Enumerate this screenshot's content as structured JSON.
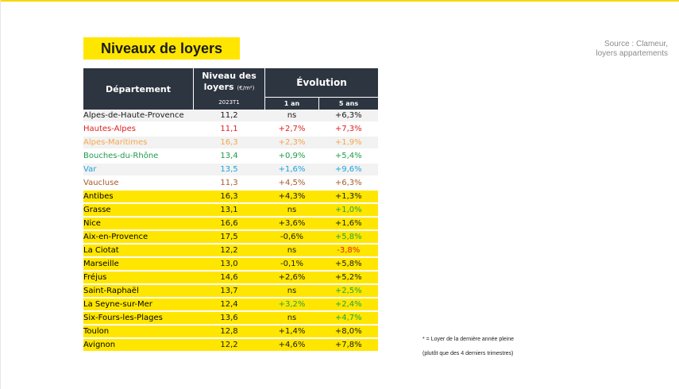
{
  "title": "Niveaux de loyers",
  "source": [
    "Source : Clameur,",
    "loyers appartements"
  ],
  "table": {
    "headers": {
      "departement": "Département",
      "niveau": "Niveau des loyers",
      "niveau_unit": "(€/m²)",
      "niveau_period": "2023T1",
      "evolution": "Évolution",
      "one_year": "1 an",
      "five_years": "5 ans"
    },
    "departements": [
      {
        "name": "Alpes-de-Haute-Provence",
        "color": "#1a1a1a",
        "niveau": "11,2",
        "an1": "ns",
        "ans5": "+6,3%"
      },
      {
        "name": "Hautes-Alpes",
        "color": "#e02020",
        "niveau": "11,1",
        "an1": "+2,7%",
        "ans5": "+7,3%"
      },
      {
        "name": "Alpes-Maritimes",
        "color": "#f5a64a",
        "niveau": "16,3",
        "an1": "+2,3%",
        "ans5": "+1,9%"
      },
      {
        "name": "Bouches-du-Rhône",
        "color": "#1e9c4a",
        "niveau": "13,4",
        "an1": "+0,9%",
        "ans5": "+5,4%"
      },
      {
        "name": "Var",
        "color": "#1ea3dc",
        "niveau": "13,5",
        "an1": "+1,6%",
        "ans5": "+9,6%"
      },
      {
        "name": "Vaucluse",
        "color": "#a85a2a",
        "niveau": "11,3",
        "an1": "+4,5%",
        "ans5": "+6,3%"
      }
    ],
    "villes": [
      {
        "name": "Antibes",
        "niveau": "16,3",
        "an1": "+4,3%",
        "ans5": "+1,3%",
        "an1_color": "",
        "ans5_color": ""
      },
      {
        "name": "Grasse",
        "niveau": "13,1",
        "an1": "ns",
        "ans5": "+1,0%",
        "an1_color": "",
        "ans5_color": "green"
      },
      {
        "name": "Nice",
        "niveau": "16,6",
        "an1": "+3,6%",
        "ans5": "+1,6%",
        "an1_color": "",
        "ans5_color": ""
      },
      {
        "name": "Aix-en-Provence",
        "niveau": "17,5",
        "an1": "-0,6%",
        "ans5": "+5,8%",
        "an1_color": "",
        "ans5_color": "green"
      },
      {
        "name": "La Ciotat",
        "niveau": "12,2",
        "an1": "ns",
        "ans5": "-3,8%",
        "an1_color": "",
        "ans5_color": "red"
      },
      {
        "name": "Marseille",
        "niveau": "13,0",
        "an1": "-0,1%",
        "ans5": "+5,8%",
        "an1_color": "",
        "ans5_color": ""
      },
      {
        "name": "Fréjus",
        "niveau": "14,6",
        "an1": "+2,6%",
        "ans5": "+5,2%",
        "an1_color": "",
        "ans5_color": ""
      },
      {
        "name": "Saint-Raphaël",
        "niveau": "13,7",
        "an1": "ns",
        "ans5": "+2,5%",
        "an1_color": "",
        "ans5_color": "green"
      },
      {
        "name": "La Seyne-sur-Mer",
        "niveau": "12,4",
        "an1": "+3,2%",
        "ans5": "+2,4%",
        "an1_color": "green",
        "ans5_color": "green"
      },
      {
        "name": "Six-Fours-les-Plages",
        "niveau": "13,6",
        "an1": "ns",
        "ans5": "+4,7%",
        "an1_color": "",
        "ans5_color": "green"
      },
      {
        "name": "Toulon",
        "niveau": "12,8",
        "an1": "+1,4%",
        "ans5": "+8,0%",
        "an1_color": "",
        "ans5_color": ""
      },
      {
        "name": "Avignon",
        "niveau": "12,2",
        "an1": "+4,6%",
        "ans5": "+7,8%",
        "an1_color": "",
        "ans5_color": ""
      }
    ]
  },
  "notes": [
    "* = Loyer de la dernière année pleine",
    "(plutôt que des 4 derniers trimestres)"
  ]
}
